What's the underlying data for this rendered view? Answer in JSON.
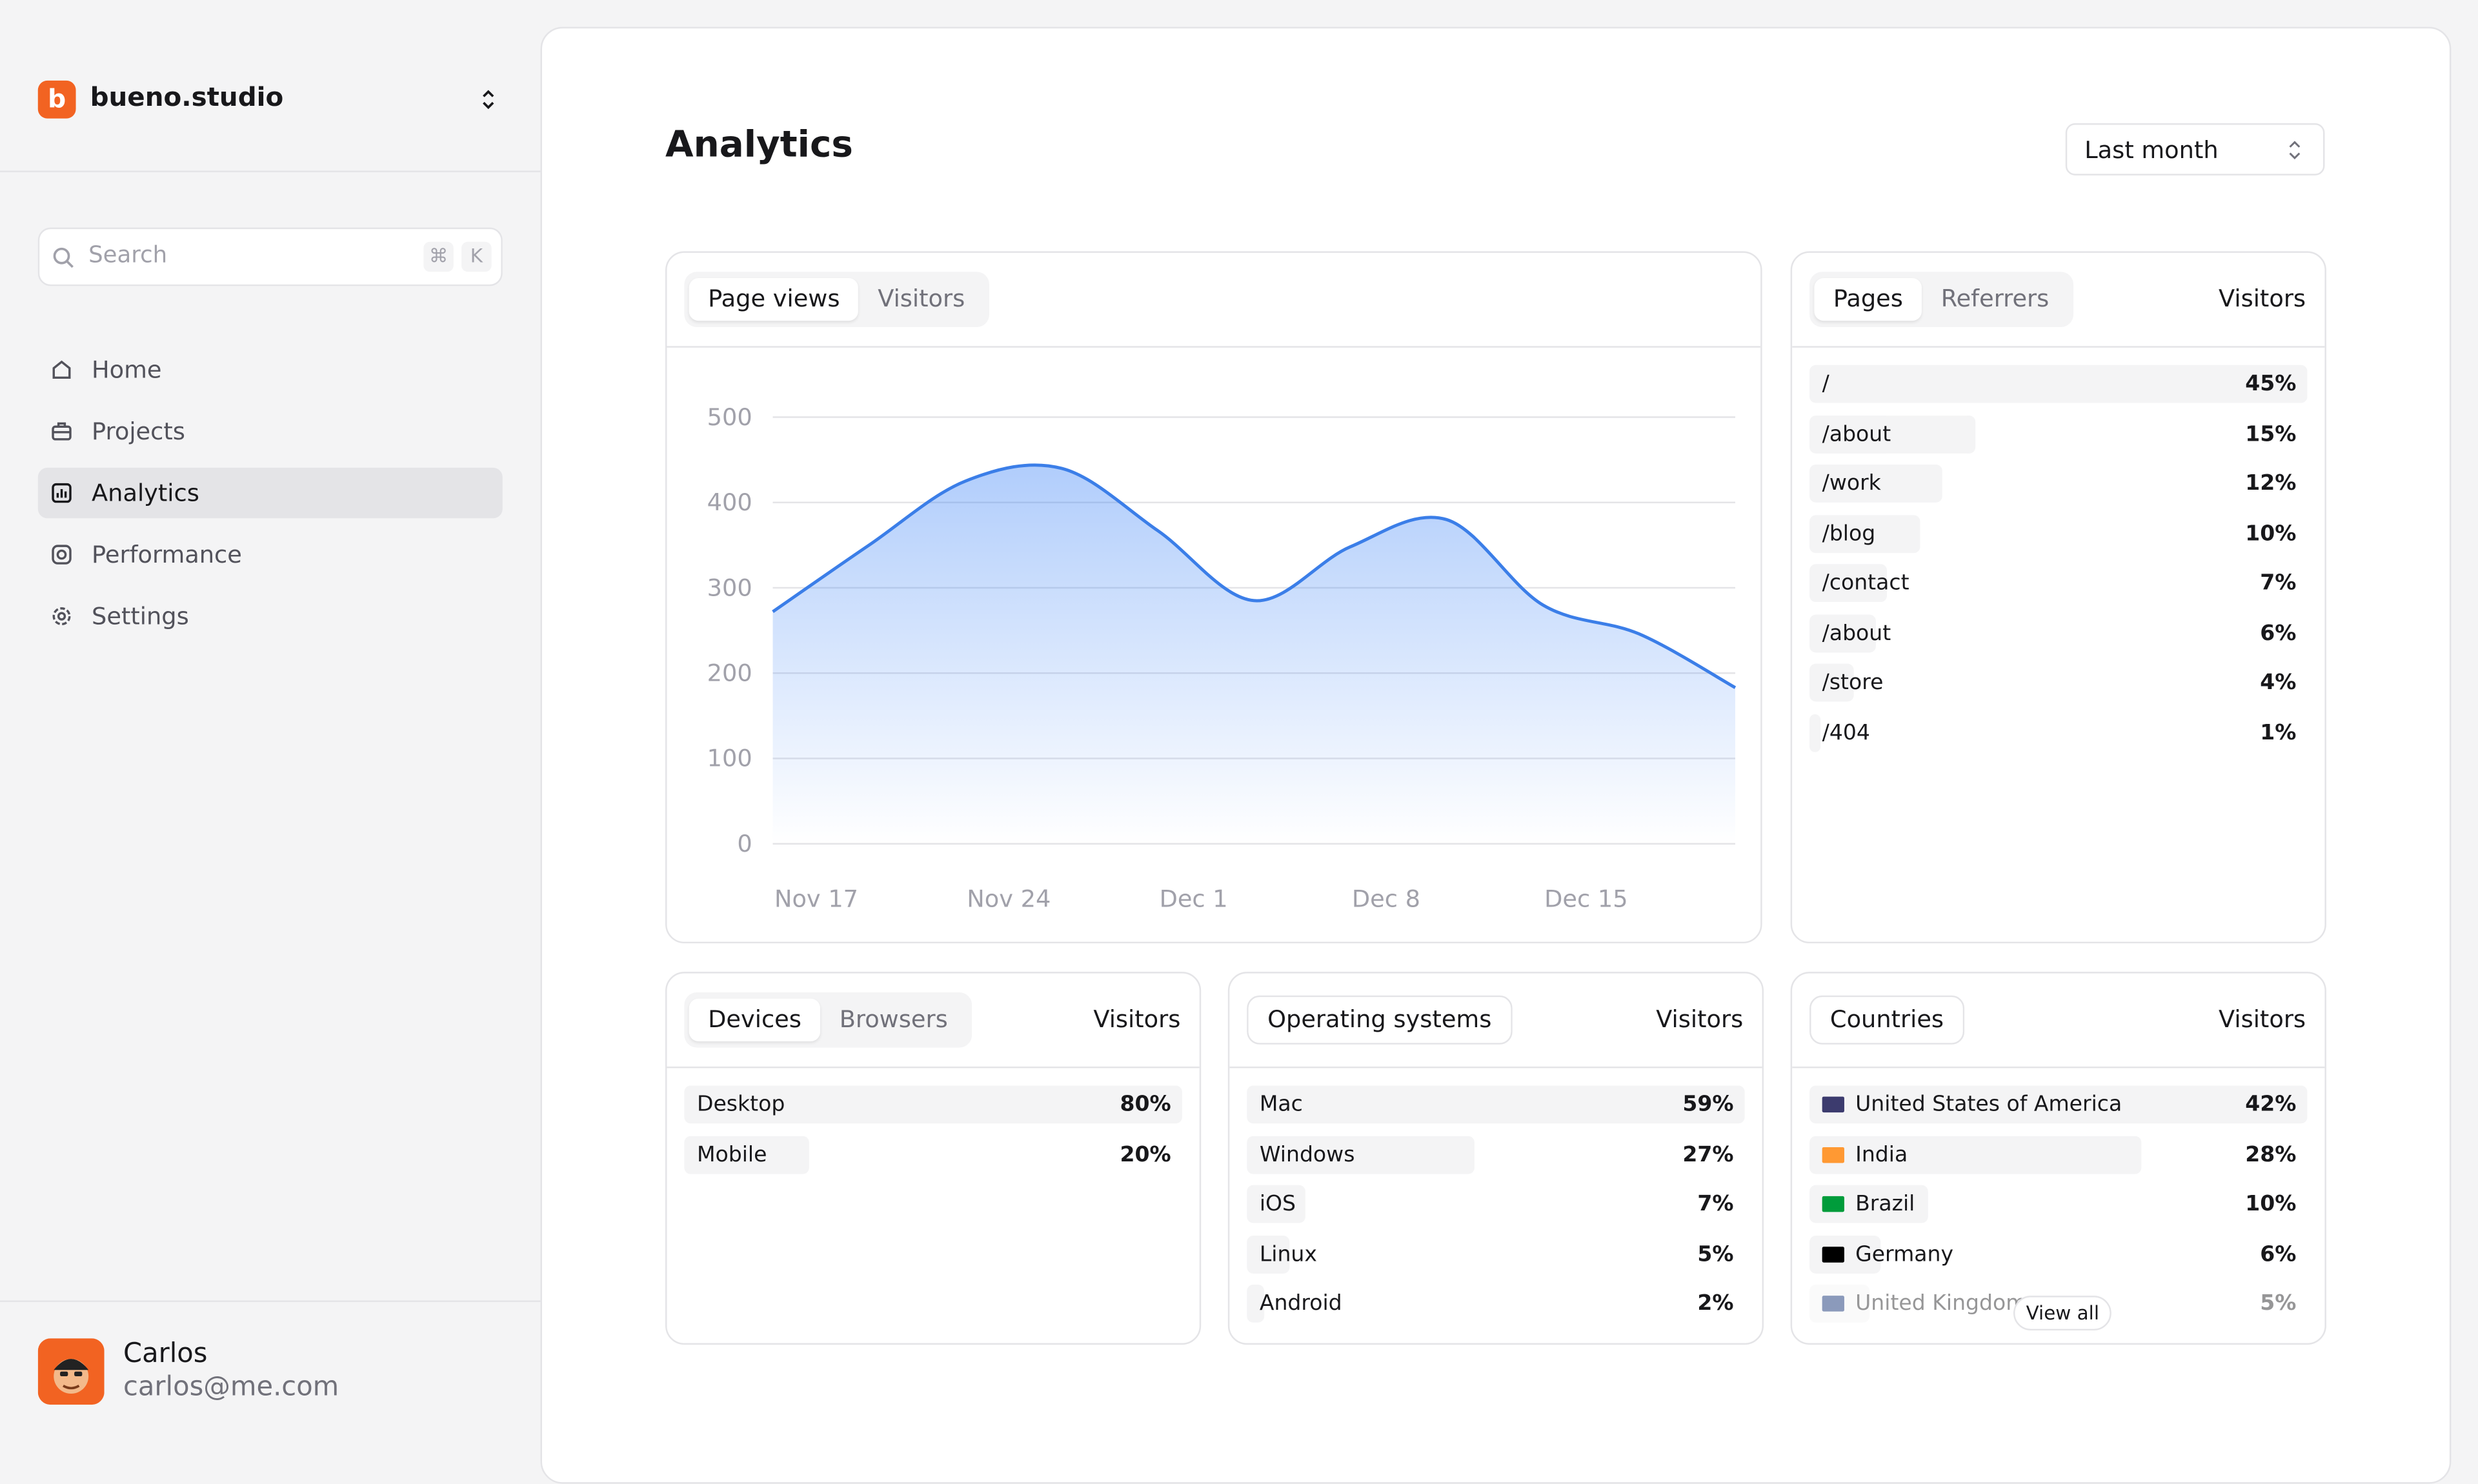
{
  "sidebar": {
    "logo": "b",
    "workspace": "bueno.studio",
    "search": "Search",
    "shortcut": [
      "⌘",
      "K"
    ],
    "nav": [
      "Home",
      "Projects",
      "Analytics",
      "Performance",
      "Settings"
    ],
    "user": {
      "name": "Carlos",
      "email": "carlos@me.com"
    }
  },
  "header": {
    "title": "Analytics",
    "range": "Last month"
  },
  "traffic": {
    "tabs": [
      "Page views",
      "Visitors"
    ]
  },
  "chart_data": {
    "type": "area",
    "categories": [
      "Nov 17",
      null,
      "Nov 24",
      null,
      "Dec 1",
      null,
      "Dec 8",
      null,
      "Dec 15",
      null,
      null
    ],
    "values": [
      272,
      350,
      425,
      440,
      367,
      285,
      348,
      380,
      280,
      246,
      183
    ],
    "color": "#3b7ee8",
    "ylim": [
      0,
      500
    ],
    "yticks": [
      0,
      100,
      200,
      300,
      400,
      500
    ],
    "grid": true
  },
  "panels": [
    {
      "tabs": [
        "Pages",
        "Referrers"
      ],
      "column": "Visitors",
      "rows": [
        {
          "label": "/",
          "value": 45,
          "value_label": "45%"
        },
        {
          "label": "/about",
          "value": 15,
          "value_label": "15%"
        },
        {
          "label": "/work",
          "value": 12,
          "value_label": "12%"
        },
        {
          "label": "/blog",
          "value": 10,
          "value_label": "10%"
        },
        {
          "label": "/contact",
          "value": 7,
          "value_label": "7%"
        },
        {
          "label": "/about",
          "value": 6,
          "value_label": "6%"
        },
        {
          "label": "/store",
          "value": 4,
          "value_label": "4%"
        },
        {
          "label": "/404",
          "value": 1,
          "value_label": "1%"
        }
      ]
    },
    {
      "tabs": [
        "Devices",
        "Browsers"
      ],
      "column": "Visitors",
      "rows": [
        {
          "label": "Desktop",
          "value": 80,
          "value_label": "80%"
        },
        {
          "label": "Mobile",
          "value": 20,
          "value_label": "20%"
        }
      ]
    },
    {
      "tabs": [
        "Operating systems"
      ],
      "column": "Visitors",
      "rows": [
        {
          "label": "Mac",
          "value": 59,
          "value_label": "59%"
        },
        {
          "label": "Windows",
          "value": 27,
          "value_label": "27%"
        },
        {
          "label": "iOS",
          "value": 7,
          "value_label": "7%"
        },
        {
          "label": "Linux",
          "value": 5,
          "value_label": "5%"
        },
        {
          "label": "Android",
          "value": 2,
          "value_label": "2%"
        }
      ]
    },
    {
      "tabs": [
        "Countries"
      ],
      "column": "Visitors",
      "more": "View all",
      "rows": [
        {
          "label": "United States of America",
          "value": 42,
          "value_label": "42%"
        },
        {
          "label": "India",
          "value": 28,
          "value_label": "28%"
        },
        {
          "label": "Brazil",
          "value": 10,
          "value_label": "10%"
        },
        {
          "label": "Germany",
          "value": 6,
          "value_label": "6%"
        },
        {
          "label": "United Kingdom",
          "value": 5,
          "value_label": "5%"
        }
      ]
    }
  ]
}
